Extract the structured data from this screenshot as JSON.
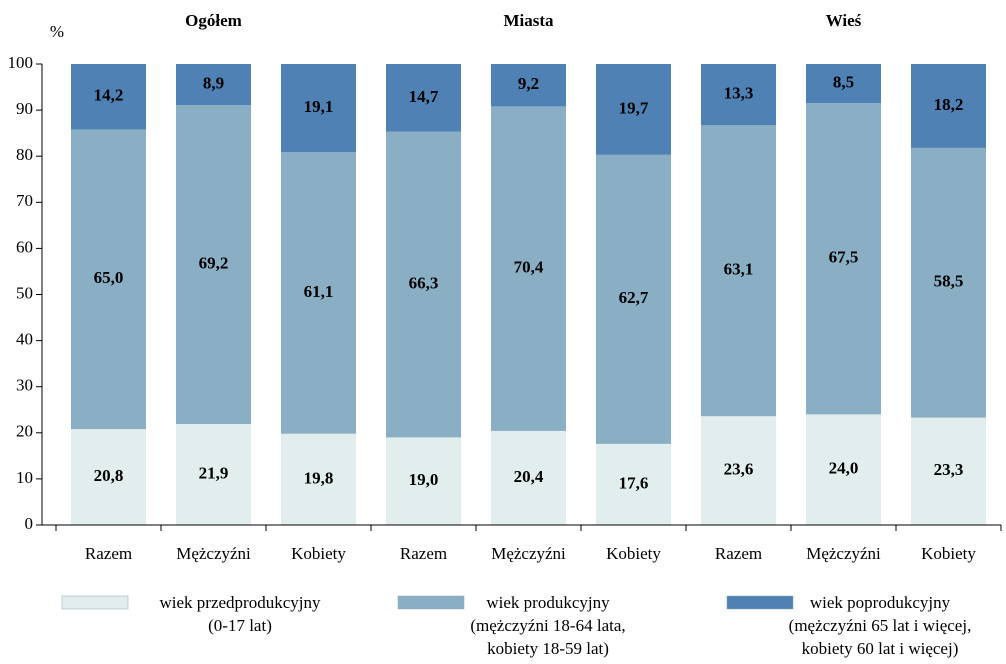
{
  "chart_data": {
    "type": "stacked-bar",
    "y_label": "%",
    "groups": [
      "Ogółem",
      "Miasta",
      "Wieś"
    ],
    "categories": [
      "Razem",
      "Mężczyźni",
      "Kobiety",
      "Razem",
      "Mężczyźni",
      "Kobiety",
      "Razem",
      "Mężczyźni",
      "Kobiety"
    ],
    "series": [
      {
        "name": "wiek przedprodukcyjny",
        "note": [
          "(0-17 lat)"
        ],
        "color": "#e2eeee",
        "values": [
          20.8,
          21.9,
          19.8,
          19.0,
          20.4,
          17.6,
          23.6,
          24.0,
          23.3
        ],
        "value_labels": [
          "20,8",
          "21,9",
          "19,8",
          "19,0",
          "20,4",
          "17,6",
          "23,6",
          "24,0",
          "23,3"
        ]
      },
      {
        "name": "wiek produkcyjny",
        "note": [
          "(mężczyźni 18-64 lata,",
          "kobiety 18-59 lat)"
        ],
        "color": "#8aafc4",
        "values": [
          65.0,
          69.2,
          61.1,
          66.3,
          70.4,
          62.7,
          63.1,
          67.5,
          58.5
        ],
        "value_labels": [
          "65,0",
          "69,2",
          "61,1",
          "66,3",
          "70,4",
          "62,7",
          "63,1",
          "67,5",
          "58,5"
        ]
      },
      {
        "name": "wiek poprodukcyjny",
        "note": [
          "(mężczyźni 65 lat i więcej,",
          "kobiety 60 lat i więcej)"
        ],
        "color": "#4f81b5",
        "values": [
          14.2,
          8.9,
          19.1,
          14.7,
          9.2,
          19.7,
          13.3,
          8.5,
          18.2
        ],
        "value_labels": [
          "14,2",
          "8,9",
          "19,1",
          "14,7",
          "9,2",
          "19,7",
          "13,3",
          "8,5",
          "18,2"
        ]
      }
    ],
    "ylim": [
      0,
      100
    ],
    "yticks": [
      0,
      10,
      20,
      30,
      40,
      50,
      60,
      70,
      80,
      90,
      100
    ]
  }
}
